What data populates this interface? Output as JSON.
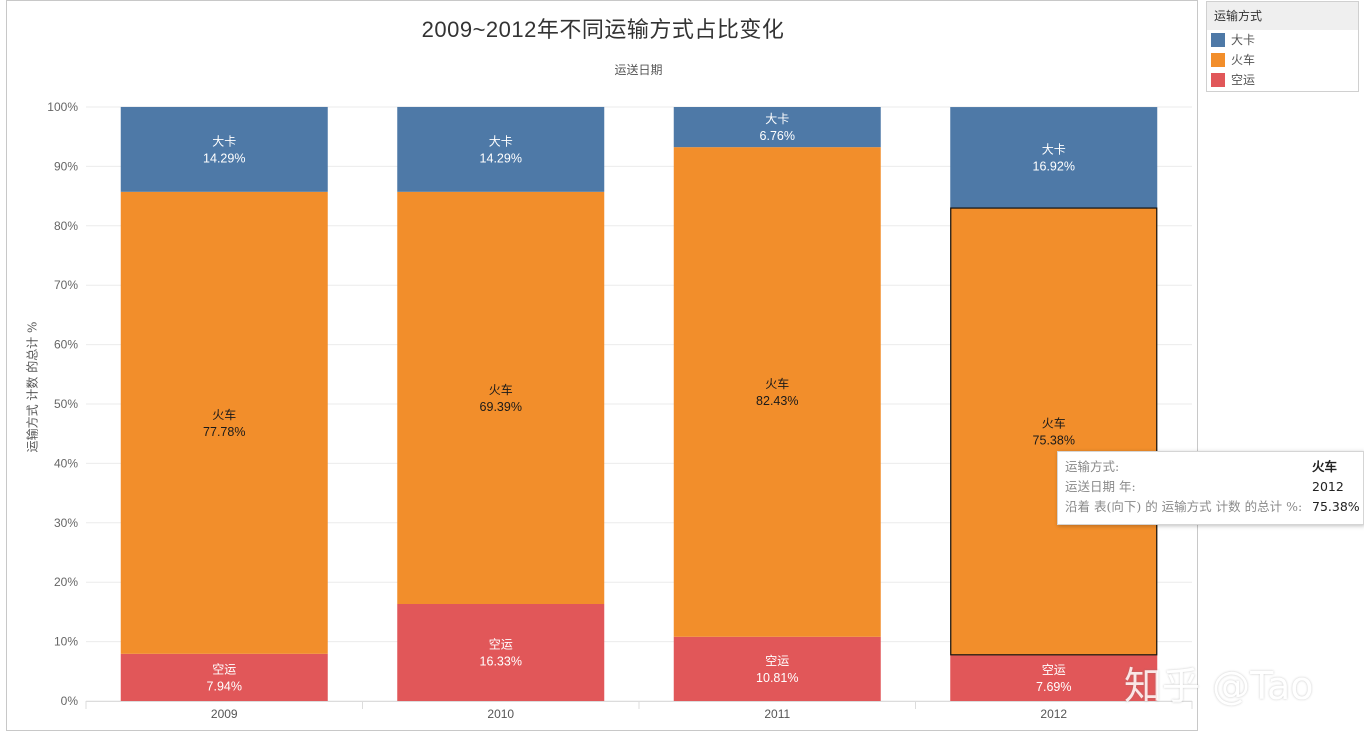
{
  "title": "2009~2012年不同运输方式占比变化",
  "legend": {
    "title": "运输方式",
    "items": [
      {
        "label": "大卡",
        "color": "#4e79a7"
      },
      {
        "label": "火车",
        "color": "#f28e2b"
      },
      {
        "label": "空运",
        "color": "#e15759"
      }
    ]
  },
  "tooltip": {
    "rows": [
      {
        "key": "运输方式:",
        "value": "火车"
      },
      {
        "key": "运送日期 年:",
        "value": "2012"
      },
      {
        "key": "沿着 表(向下) 的 运输方式 计数 的总计 %:",
        "value": "75.38%"
      }
    ]
  },
  "watermark": "知乎 @Tao",
  "chart_data": {
    "type": "bar",
    "stacked": true,
    "title": "2009~2012年不同运输方式占比变化",
    "xlabel": "运送日期",
    "ylabel": "运输方式 计数 的总计 %",
    "categories": [
      "2009",
      "2010",
      "2011",
      "2012"
    ],
    "ylim": [
      0,
      100
    ],
    "yticks": [
      "0%",
      "10%",
      "20%",
      "30%",
      "40%",
      "50%",
      "60%",
      "70%",
      "80%",
      "90%",
      "100%"
    ],
    "grid": true,
    "legend_position": "top-right",
    "series": [
      {
        "name": "空运",
        "color": "#e15759",
        "values": [
          7.94,
          16.33,
          10.81,
          7.69
        ],
        "labels": [
          "7.94%",
          "16.33%",
          "10.81%",
          "7.69%"
        ]
      },
      {
        "name": "火车",
        "color": "#f28e2b",
        "values": [
          77.78,
          69.39,
          82.43,
          75.38
        ],
        "labels": [
          "77.78%",
          "69.39%",
          "82.43%",
          "75.38%"
        ]
      },
      {
        "name": "大卡",
        "color": "#4e79a7",
        "values": [
          14.29,
          14.29,
          6.76,
          16.92
        ],
        "labels": [
          "14.29%",
          "14.29%",
          "6.76%",
          "16.92%"
        ]
      }
    ],
    "highlight": {
      "category": "2012",
      "series": "火车"
    }
  }
}
